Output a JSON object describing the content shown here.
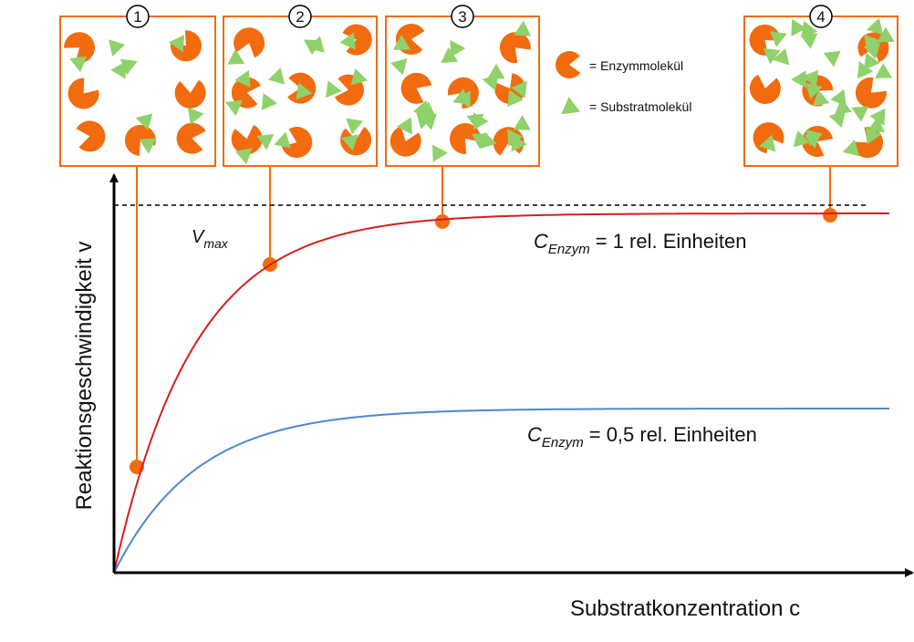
{
  "panels": [
    {
      "label": "1"
    },
    {
      "label": "2"
    },
    {
      "label": "3"
    },
    {
      "label": "4"
    }
  ],
  "legend": {
    "enzyme": "= Enzymmolekül",
    "substrate": "= Substratmolekül"
  },
  "axes": {
    "y_label": "Reaktionsgeschwindigkeit v",
    "x_label": "Substratkonzentration c"
  },
  "vmax": {
    "symbol": "V",
    "subscript": "max"
  },
  "curves": [
    {
      "symbol": "C",
      "subscript": "Enzym",
      "text": "= 1 rel. Einheiten"
    },
    {
      "symbol": "C",
      "subscript": "Enzym",
      "text": "= 0,5 rel. Einheiten"
    }
  ]
}
